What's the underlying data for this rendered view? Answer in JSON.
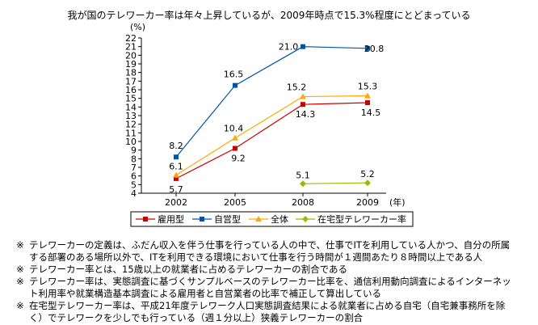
{
  "chart_data": {
    "type": "line",
    "title": "我が国のテレワーカー率は年々上昇しているが、2009年時点で15.3%程度にとどまっている",
    "y_unit": "(%)",
    "x_unit": "(年)",
    "x": [
      "2002",
      "2005",
      "2008",
      "2009"
    ],
    "ylim": [
      4,
      22
    ],
    "yticks": [
      4,
      5,
      6,
      7,
      8,
      9,
      10,
      11,
      12,
      13,
      14,
      15,
      16,
      17,
      18,
      19,
      20,
      21,
      22
    ],
    "grid": false,
    "legend_position": "bottom",
    "series": [
      {
        "name": "雇用型",
        "color": "#cc0000",
        "marker": "square",
        "values": [
          5.7,
          9.2,
          14.3,
          14.5
        ],
        "labels": [
          "5.7",
          "9.2",
          "14.3",
          "14.5"
        ]
      },
      {
        "name": "自営型",
        "color": "#0055aa",
        "marker": "square",
        "values": [
          8.2,
          16.5,
          21.0,
          20.8
        ],
        "labels": [
          "8.2",
          "16.5",
          "21.0",
          "20.8"
        ]
      },
      {
        "name": "全体",
        "color": "#ffaa00",
        "marker": "triangle",
        "values": [
          6.1,
          10.4,
          15.2,
          15.3
        ],
        "labels": [
          "6.1",
          "10.4",
          "15.2",
          "15.3"
        ]
      },
      {
        "name": "在宅型テレワーカー率",
        "color": "#99bb00",
        "marker": "diamond",
        "values": [
          null,
          null,
          5.1,
          5.2
        ],
        "labels": [
          null,
          null,
          "5.1",
          "5.2"
        ]
      }
    ]
  },
  "notes": [
    {
      "mark": "※",
      "lines": [
        "テレワーカーの定義は、ふだん収入を伴う仕事を行っている人の中で、仕事でITを利用している人かつ、自分の所属",
        "する部署のある場所以外で、ITを利用できる環境において仕事を行う時間が１週間あたり８時間以上である人"
      ]
    },
    {
      "mark": "※",
      "lines": [
        "テレワーカー率とは、15歳以上の就業者に占めるテレワーカーの割合である"
      ]
    },
    {
      "mark": "※",
      "lines": [
        "テレワーカー率は、実態調査に基づくサンプルベースのテレワーカー比率を、通信利用動向調査によるインターネッ",
        "ト利用率や就業構造基本調査による雇用者と自営業者の比率で補正して算出している"
      ]
    },
    {
      "mark": "※",
      "lines": [
        "在宅型テレワーカー率は、平成21年度テレワーク人口実態調査結果による就業者に占める自宅（自宅兼事務所を除",
        "く）でテレワークを少しでも行っている（週１分以上）狭義テレワーカーの割合"
      ]
    }
  ]
}
